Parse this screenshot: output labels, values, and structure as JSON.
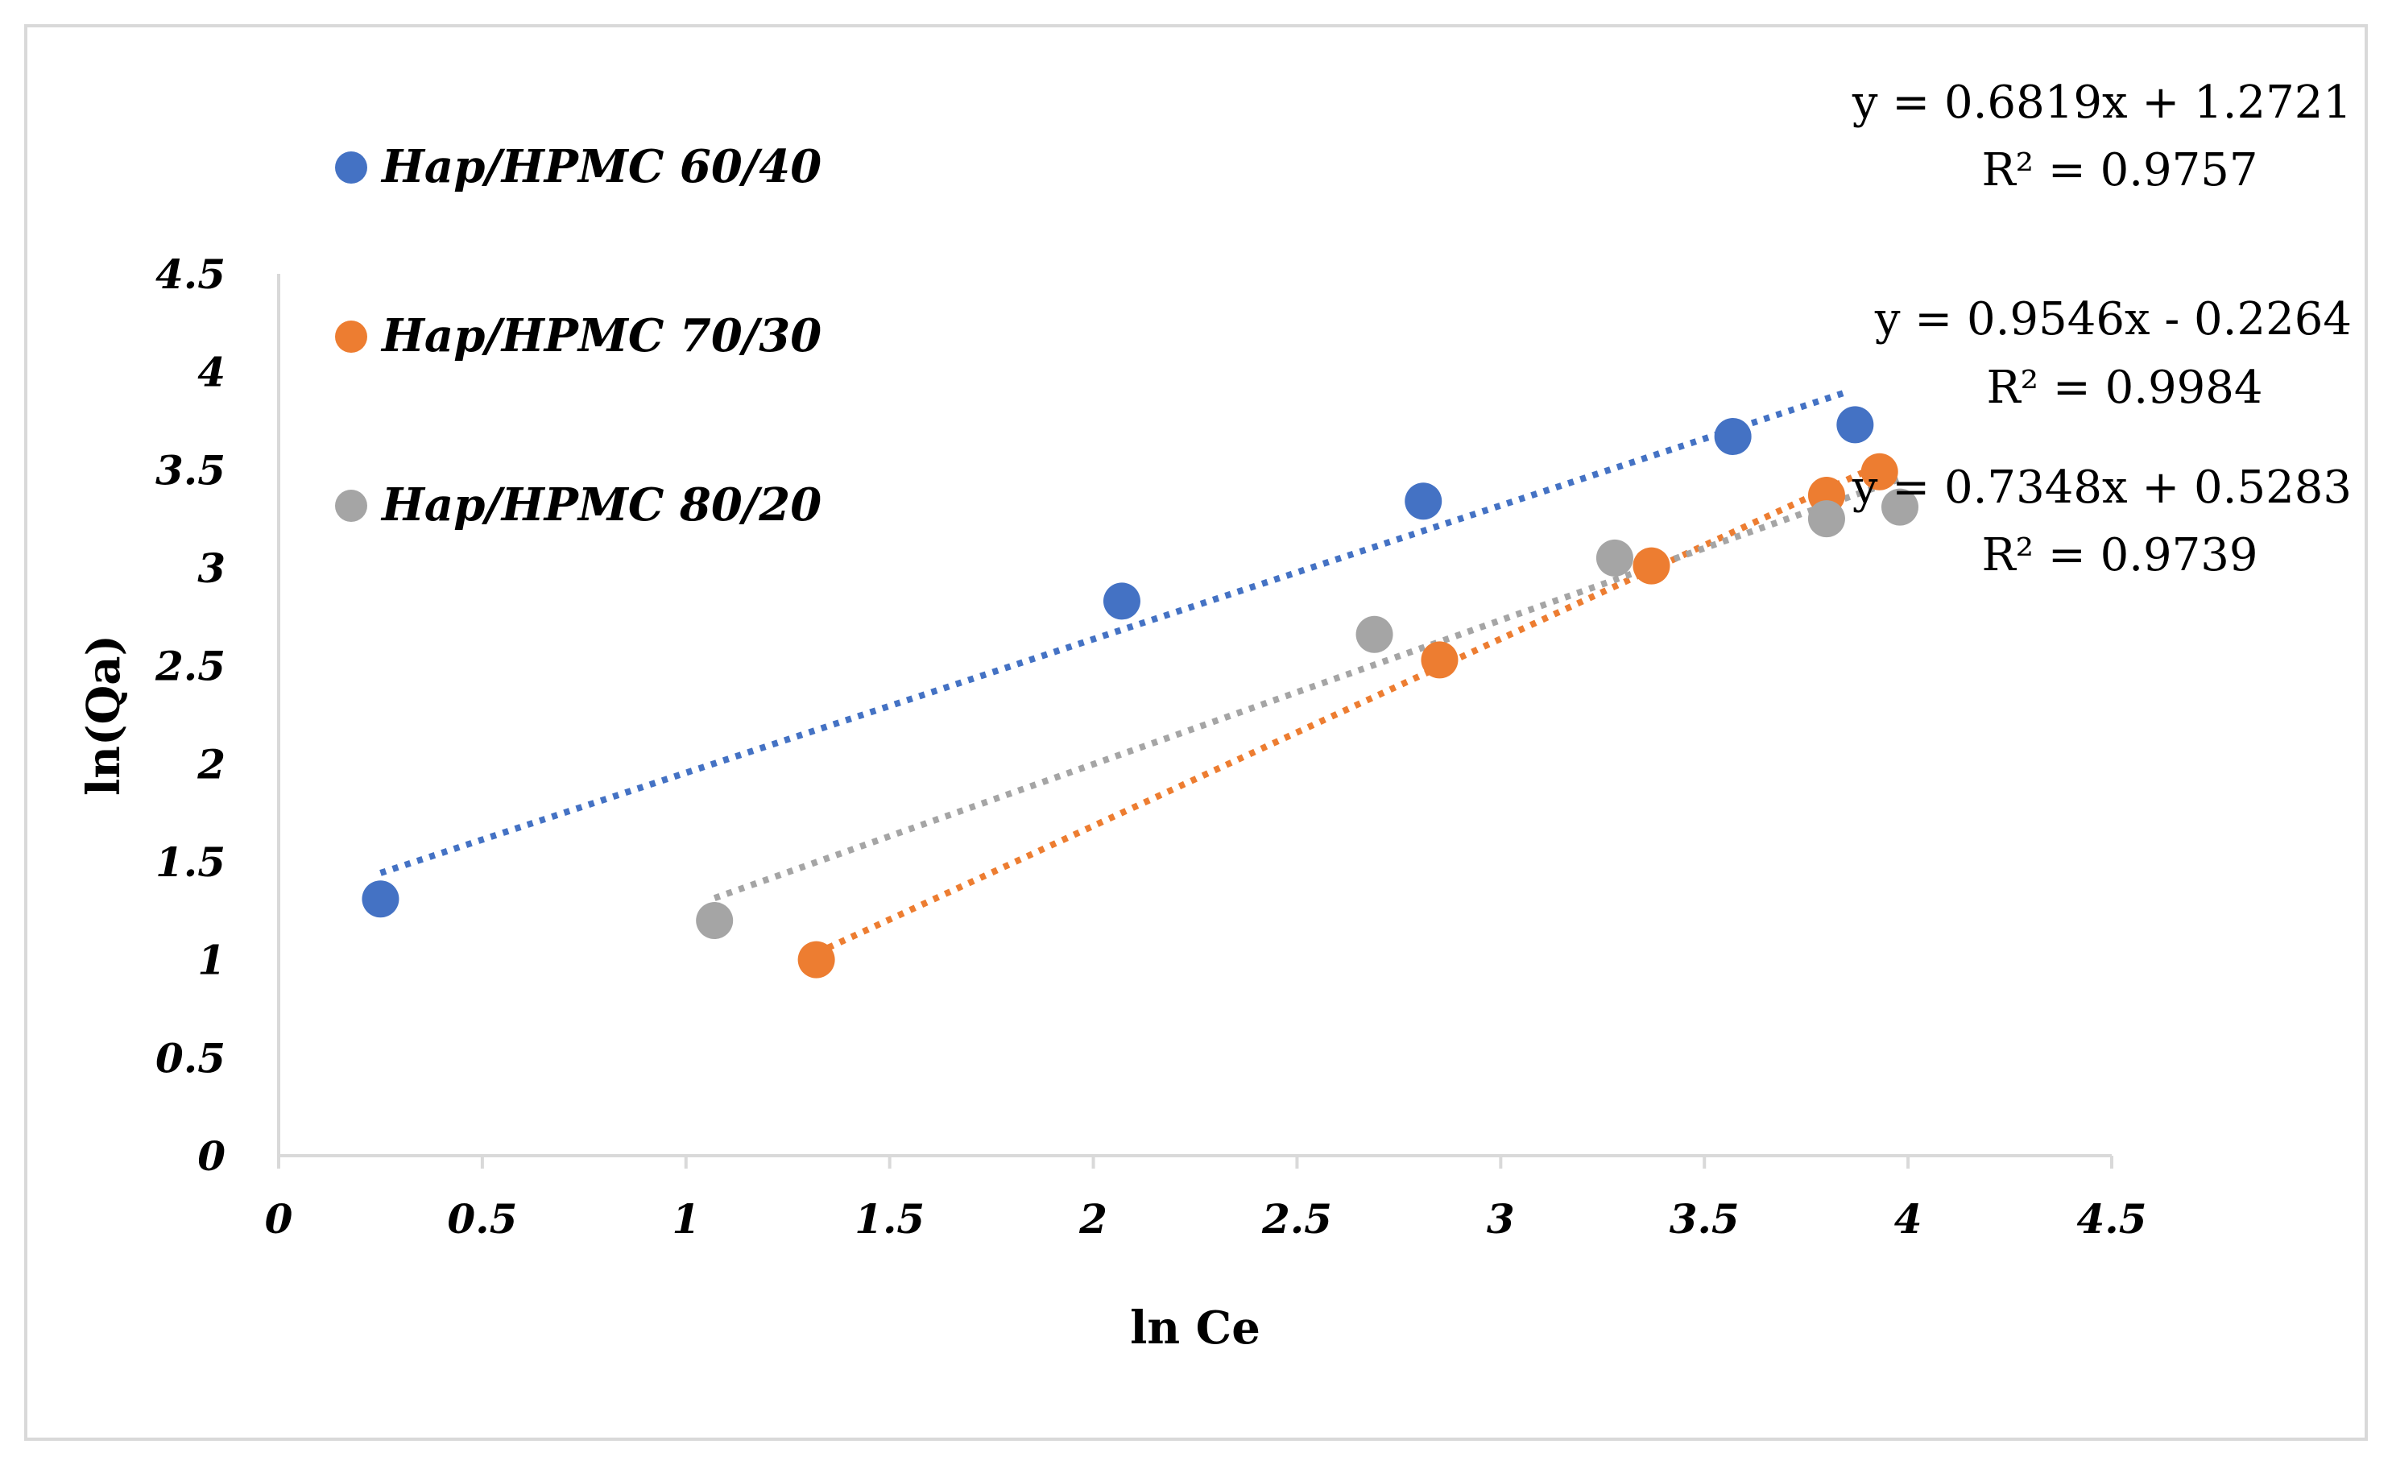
{
  "chart_data": {
    "type": "scatter",
    "title": "",
    "xlabel": "ln Ce",
    "ylabel": "ln(Qa)",
    "xlim": [
      0,
      4.5
    ],
    "ylim": [
      0,
      4.5
    ],
    "x_ticks": [
      "0",
      "0.5",
      "1",
      "1.5",
      "2",
      "2.5",
      "3",
      "3.5",
      "4",
      "4.5"
    ],
    "y_ticks": [
      "0",
      "0.5",
      "1",
      "1.5",
      "2",
      "2.5",
      "3",
      "3.5",
      "4",
      "4.5"
    ],
    "grid": false,
    "legend_position": "top-left",
    "series": [
      {
        "name": "Hap/HPMC 60/40",
        "color": "#4472c4",
        "points": [
          [
            0.25,
            1.31
          ],
          [
            2.07,
            2.83
          ],
          [
            2.81,
            3.34
          ],
          [
            3.57,
            3.67
          ],
          [
            3.87,
            3.73
          ]
        ],
        "trendline": {
          "type": "linear",
          "slope": 0.6819,
          "intercept": 1.2721,
          "x_range": [
            0.25,
            3.84
          ]
        },
        "equation": "y = 0.6819x + 1.2721",
        "r_squared": "R² = 0.9757"
      },
      {
        "name": "Hap/HPMC 70/30",
        "color": "#ed7d31",
        "points": [
          [
            1.32,
            1.0
          ],
          [
            2.85,
            2.53
          ],
          [
            3.37,
            3.01
          ],
          [
            3.8,
            3.37
          ],
          [
            3.93,
            3.49
          ]
        ],
        "trendline": {
          "type": "linear",
          "slope": 0.9546,
          "intercept": -0.2264,
          "x_range": [
            1.32,
            3.93
          ]
        },
        "equation": "y = 0.9546x - 0.2264",
        "r_squared": "R² = 0.9984"
      },
      {
        "name": "Hap/HPMC 80/20",
        "color": "#a5a5a5",
        "points": [
          [
            1.07,
            1.2
          ],
          [
            2.69,
            2.66
          ],
          [
            3.28,
            3.05
          ],
          [
            3.8,
            3.25
          ],
          [
            3.98,
            3.31
          ]
        ],
        "trendline": {
          "type": "linear",
          "slope": 0.7348,
          "intercept": 0.5283,
          "x_range": [
            1.07,
            3.98
          ]
        },
        "equation": "y = 0.7348x + 0.5283",
        "r_squared": "R² = 0.9739"
      }
    ]
  }
}
